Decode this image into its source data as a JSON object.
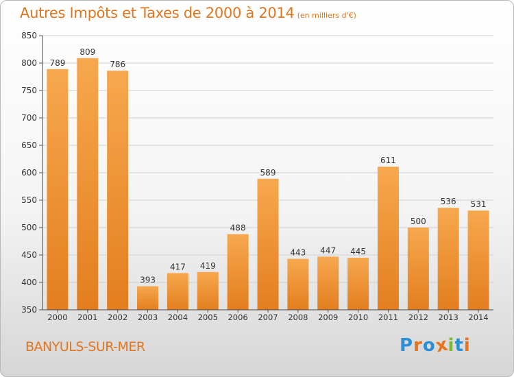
{
  "header": {
    "title": "Autres Impôts et Taxes de 2000 à 2014",
    "subtitle": "(en milliers d'€)"
  },
  "footer": {
    "town": "BANYULS-SUR-MER",
    "logo": "Proxiti"
  },
  "colors": {
    "bar_light": "#f7a84e",
    "bar_dark": "#e37e1f",
    "accent": "#e0761e",
    "grid": "#d0d0d0",
    "logo_letters": [
      "#2c8fd6",
      "#e8731c",
      "#2c8fd6",
      "#e8731c",
      "#7cb82f",
      "#2c8fd6",
      "#e8731c"
    ]
  },
  "chart_data": {
    "type": "bar",
    "categories": [
      "2000",
      "2001",
      "2002",
      "2003",
      "2004",
      "2005",
      "2006",
      "2007",
      "2008",
      "2009",
      "2010",
      "2011",
      "2012",
      "2013",
      "2014"
    ],
    "values": [
      789,
      809,
      786,
      393,
      417,
      419,
      488,
      589,
      443,
      447,
      445,
      611,
      500,
      536,
      531
    ],
    "yticks": [
      350,
      400,
      450,
      500,
      550,
      600,
      650,
      700,
      750,
      800,
      850
    ],
    "ylim": [
      350,
      850
    ],
    "grid": true,
    "data_labels": true
  }
}
